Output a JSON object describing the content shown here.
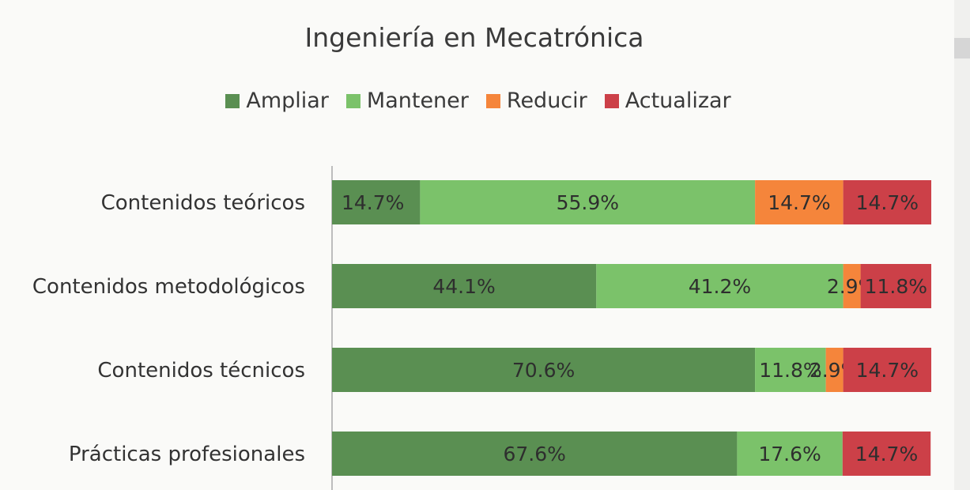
{
  "chart_data": {
    "type": "bar",
    "orientation": "horizontal",
    "stacked": true,
    "title": "Ingeniería en Mecatrónica",
    "categories": [
      "Contenidos teóricos",
      "Contenidos metodológicos",
      "Contenidos técnicos",
      "Prácticas profesionales"
    ],
    "series": [
      {
        "name": "Ampliar",
        "color": "#5a8f52",
        "values": [
          14.7,
          44.1,
          70.6,
          67.6
        ],
        "labels": [
          "14.7%",
          "44.1%",
          "70.6%",
          "67.6%"
        ]
      },
      {
        "name": "Mantener",
        "color": "#7bc26a",
        "values": [
          55.9,
          41.2,
          11.8,
          17.6
        ],
        "labels": [
          "55.9%",
          "41.2%",
          "11.8%",
          "17.6%"
        ]
      },
      {
        "name": "Reducir",
        "color": "#f5853b",
        "values": [
          14.7,
          2.9,
          2.9,
          0
        ],
        "labels": [
          "14.7%",
          "2.9%",
          "2.9%",
          ""
        ]
      },
      {
        "name": "Actualizar",
        "color": "#cc4048",
        "values": [
          14.7,
          11.8,
          14.7,
          14.7
        ],
        "labels": [
          "14.7%",
          "11.8%",
          "14.7%",
          "14.7%"
        ]
      }
    ],
    "xlim": [
      0,
      100
    ],
    "legend_position": "top",
    "grid": false
  }
}
